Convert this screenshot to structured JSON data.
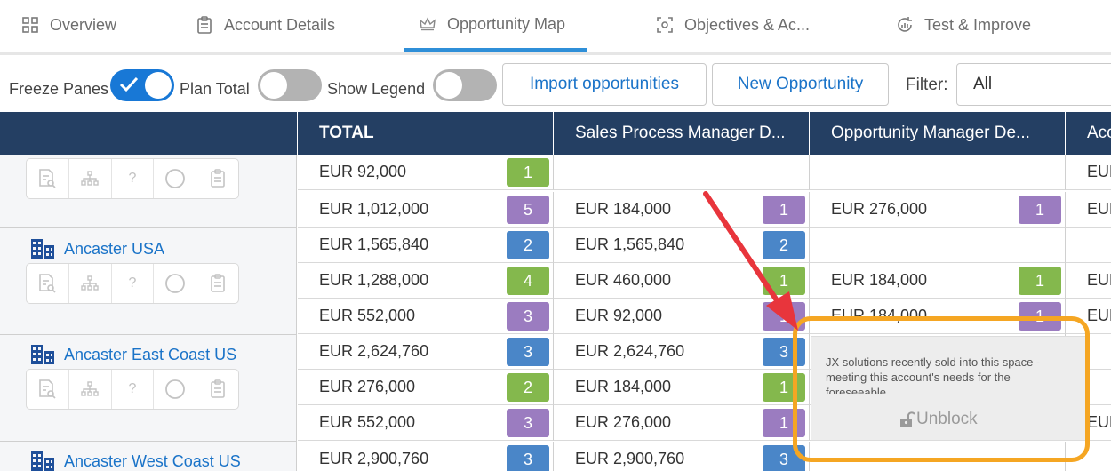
{
  "tabs": [
    {
      "label": "Overview",
      "icon": "grid-icon"
    },
    {
      "label": "Account Details",
      "icon": "clipboard-icon"
    },
    {
      "label": "Opportunity Map",
      "icon": "crown-icon",
      "active": true
    },
    {
      "label": "Objectives & Ac...",
      "icon": "target-icon"
    },
    {
      "label": "Test & Improve",
      "icon": "refresh-chart-icon"
    }
  ],
  "toolbar": {
    "freeze_panes_label": "Freeze Panes",
    "freeze_panes_on": true,
    "plan_total_label": "Plan Total",
    "plan_total_on": false,
    "show_legend_label": "Show Legend",
    "show_legend_on": false,
    "import_label": "Import opportunities",
    "new_label": "New Opportunity",
    "filter_label": "Filter:",
    "filter_value": "All"
  },
  "grid": {
    "headers": [
      "TOTAL",
      "Sales Process Manager D...",
      "Opportunity Manager De...",
      "Acc"
    ],
    "accounts": [
      "Ancaster USA",
      "Ancaster East Coast US",
      "Ancaster West Coast US"
    ],
    "rows": [
      {
        "total": "EUR 92,000",
        "total_badge": "1",
        "total_color": "green",
        "c1": "",
        "c1_badge": "",
        "c2": "",
        "c2_badge": "",
        "c3": "EUR"
      },
      {
        "total": "EUR 1,012,000",
        "total_badge": "5",
        "total_color": "purple",
        "c1": "EUR 184,000",
        "c1_badge": "1",
        "c1_color": "purple",
        "c2": "EUR 276,000",
        "c2_badge": "1",
        "c2_color": "purple",
        "c3": "EUR"
      },
      {
        "total": "EUR 1,565,840",
        "total_badge": "2",
        "total_color": "blue",
        "c1": "EUR 1,565,840",
        "c1_badge": "2",
        "c1_color": "blue",
        "c2": "",
        "c2_badge": "",
        "c3": ""
      },
      {
        "total": "EUR 1,288,000",
        "total_badge": "4",
        "total_color": "green",
        "c1": "EUR 460,000",
        "c1_badge": "1",
        "c1_color": "green",
        "c2": "EUR 184,000",
        "c2_badge": "1",
        "c2_color": "green",
        "c3": "EUR"
      },
      {
        "total": "EUR 552,000",
        "total_badge": "3",
        "total_color": "purple",
        "c1": "EUR 92,000",
        "c1_badge": "1",
        "c1_color": "purple",
        "c2": "EUR 184,000",
        "c2_badge": "1",
        "c2_color": "purple",
        "c3": "EUR"
      },
      {
        "total": "EUR 2,624,760",
        "total_badge": "3",
        "total_color": "blue",
        "c1": "EUR 2,624,760",
        "c1_badge": "3",
        "c1_color": "blue",
        "c2": "",
        "c2_badge": "",
        "c3": ""
      },
      {
        "total": "EUR 276,000",
        "total_badge": "2",
        "total_color": "green",
        "c1": "EUR 184,000",
        "c1_badge": "1",
        "c1_color": "green",
        "c2": "",
        "c2_badge": "",
        "c3": ""
      },
      {
        "total": "EUR 552,000",
        "total_badge": "3",
        "total_color": "purple",
        "c1": "EUR 276,000",
        "c1_badge": "1",
        "c1_color": "purple",
        "c2": "",
        "c2_badge": "",
        "c3": "EUR"
      },
      {
        "total": "EUR 2,900,760",
        "total_badge": "3",
        "total_color": "blue",
        "c1": "EUR 2,900,760",
        "c1_badge": "3",
        "c1_color": "blue",
        "c2": "",
        "c2_badge": "",
        "c3": ""
      }
    ]
  },
  "tooltip": {
    "text": "JX solutions recently sold into this space - meeting this account's needs for the foreseeable",
    "unblock_label": "Unblock"
  },
  "colors": {
    "green": "#84b84d",
    "purple": "#9b7cc0",
    "blue": "#4a86c8",
    "header_bg": "#243f63",
    "accent": "#1878d6",
    "highlight": "#f5a623",
    "arrow": "#e8353c"
  }
}
